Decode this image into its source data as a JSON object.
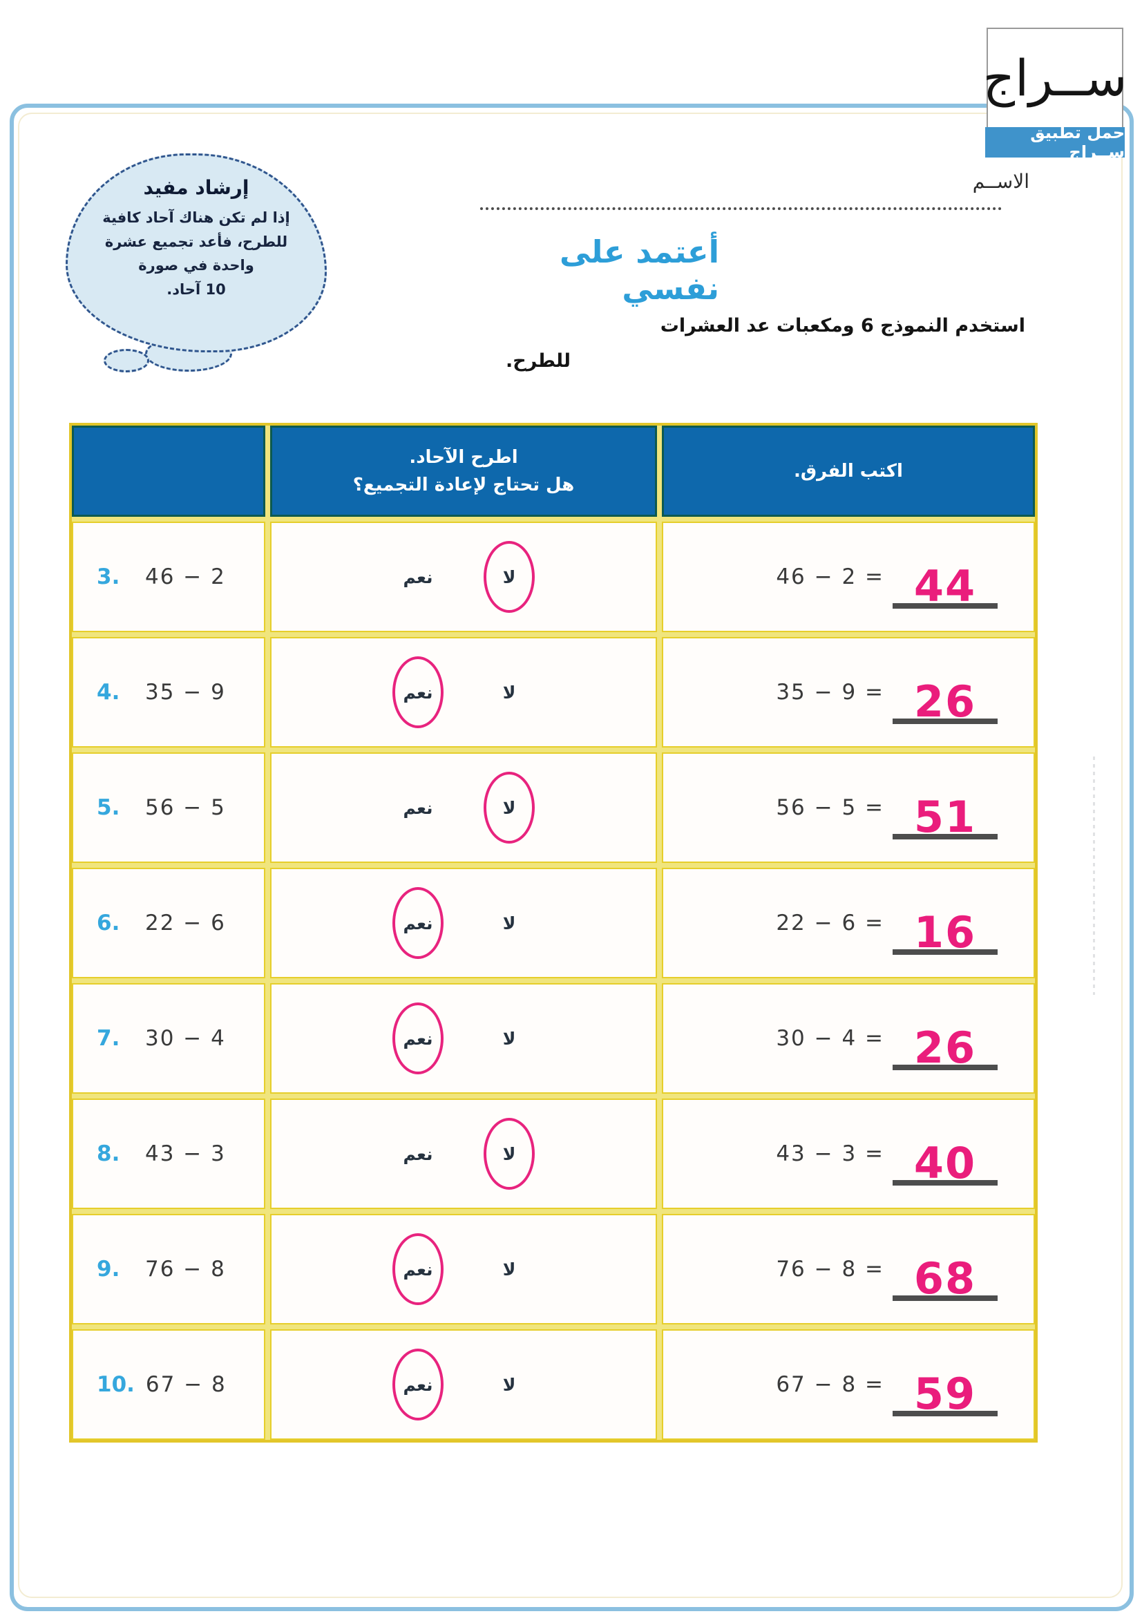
{
  "logo": {
    "title": "ســراج",
    "banner": "حمل تطبيق ســراج"
  },
  "name_label": "الاســم",
  "hint": {
    "title": "إرشاد مفيد",
    "line1": "إذا لم تكن هناك آحاد كافية",
    "line2": "للطرح، فأعد تجميع عشرة",
    "line3": "واحدة في صورة",
    "line4": "10 آحاد."
  },
  "section_title": "أعتمد على نفسي",
  "instructions": {
    "line1": "استخدم النموذج 6 ومكعبات عد العشرات",
    "line2": "للطرح."
  },
  "colors": {
    "header_blue": "#0e68ac",
    "grid_yellow": "#e2c62a",
    "answer_pink": "#ea1d7c",
    "number_blue": "#35a7dd",
    "title_blue": "#2d9ed8",
    "frame_blue": "#8bc0e0",
    "banner_blue": "#3f93cb",
    "cloud_fill": "#d8e9f3"
  },
  "table": {
    "headers": {
      "problem": "",
      "regroup_line1": "اطرح الآحاد.",
      "regroup_line2": "هل تحتاج لإعادة التجميع؟",
      "difference": "اكتب الفرق."
    },
    "yes_label": "نعم",
    "no_label": "لا",
    "rows": [
      {
        "num": "3.",
        "problem": "46 − 2",
        "circled": "no",
        "equation": "46 − 2 =",
        "answer": "44"
      },
      {
        "num": "4.",
        "problem": "35 − 9",
        "circled": "yes",
        "equation": "35 − 9 =",
        "answer": "26"
      },
      {
        "num": "5.",
        "problem": "56 − 5",
        "circled": "no",
        "equation": "56 − 5 =",
        "answer": "51"
      },
      {
        "num": "6.",
        "problem": "22 − 6",
        "circled": "yes",
        "equation": "22 − 6 =",
        "answer": "16"
      },
      {
        "num": "7.",
        "problem": "30 − 4",
        "circled": "yes",
        "equation": "30 − 4 =",
        "answer": "26"
      },
      {
        "num": "8.",
        "problem": "43 − 3",
        "circled": "no",
        "equation": "43 − 3 =",
        "answer": "40"
      },
      {
        "num": "9.",
        "problem": "76 − 8",
        "circled": "yes",
        "equation": "76 − 8 =",
        "answer": "68"
      },
      {
        "num": "10.",
        "problem": "67 − 8",
        "circled": "yes",
        "equation": "67 − 8 =",
        "answer": "59"
      }
    ]
  }
}
